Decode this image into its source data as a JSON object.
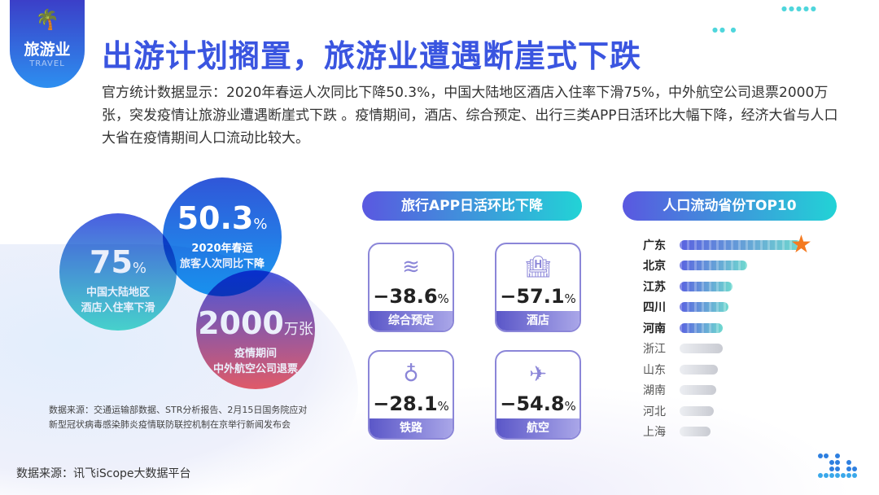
{
  "badge": {
    "icon": "palm-tree-icon",
    "label": "旅游业",
    "sub": "TRAVEL"
  },
  "title": "出游计划搁置，旅游业遭遇断崖式下跌",
  "paragraph": "官方统计数据显示：2020年春运人次同比下降50.3%，中国大陆地区酒店入住率下滑75%，中外航空公司退票2000万张，突发疫情让旅游业遭遇断崖式下跌 。疫情期间，酒店、综合预定、出行三类APP日活环比大幅下降，经济大省与人口大省在疫情期间人口流动比较大。",
  "circles": [
    {
      "value": "75",
      "unit": "%",
      "line1": "中国大陆地区",
      "line2": "酒店入住率下滑"
    },
    {
      "value": "50.3",
      "unit": "%",
      "line1": "2020年春运",
      "line2": "旅客人次同比下降"
    },
    {
      "value": "2000",
      "unit": "万张",
      "line1": "疫情期间",
      "line2": "中外航空公司退票"
    }
  ],
  "source1": {
    "line1": "数据来源：交通运输部数据、STR分析报告、2月15日国务院应对",
    "line2": "新型冠状病毒感染肺炎疫情联防联控机制在京举行新闻发布会"
  },
  "source2": "数据来源：讯飞iScope大数据平台",
  "app_section": {
    "title": "旅行APP日活环比下降",
    "cards": [
      {
        "icon": "layers-icon",
        "value": "−38.6",
        "unit": "%",
        "label": "综合预定"
      },
      {
        "icon": "hotel-icon",
        "value": "−57.1",
        "unit": "%",
        "label": "酒店"
      },
      {
        "icon": "railway-icon",
        "value": "−28.1",
        "unit": "%",
        "label": "铁路"
      },
      {
        "icon": "airplane-icon",
        "value": "−54.8",
        "unit": "%",
        "label": "航空"
      }
    ]
  },
  "rank_section": {
    "title": "人口流动省份TOP10",
    "items": [
      {
        "name": "广东",
        "relative": 1.0,
        "highlight": true
      },
      {
        "name": "北京",
        "relative": 0.55,
        "highlight": true
      },
      {
        "name": "江苏",
        "relative": 0.43,
        "highlight": true
      },
      {
        "name": "四川",
        "relative": 0.4,
        "highlight": true
      },
      {
        "name": "河南",
        "relative": 0.35,
        "highlight": true
      },
      {
        "name": "浙江",
        "relative": 0.35,
        "highlight": false
      },
      {
        "name": "山东",
        "relative": 0.31,
        "highlight": false
      },
      {
        "name": "湖南",
        "relative": 0.3,
        "highlight": false
      },
      {
        "name": "河北",
        "relative": 0.28,
        "highlight": false
      },
      {
        "name": "上海",
        "relative": 0.25,
        "highlight": false
      }
    ]
  },
  "colors": {
    "title": "#3a55e0",
    "accent_start": "#5a58e0",
    "accent_end": "#22d3d6",
    "star": "#f47a20"
  }
}
